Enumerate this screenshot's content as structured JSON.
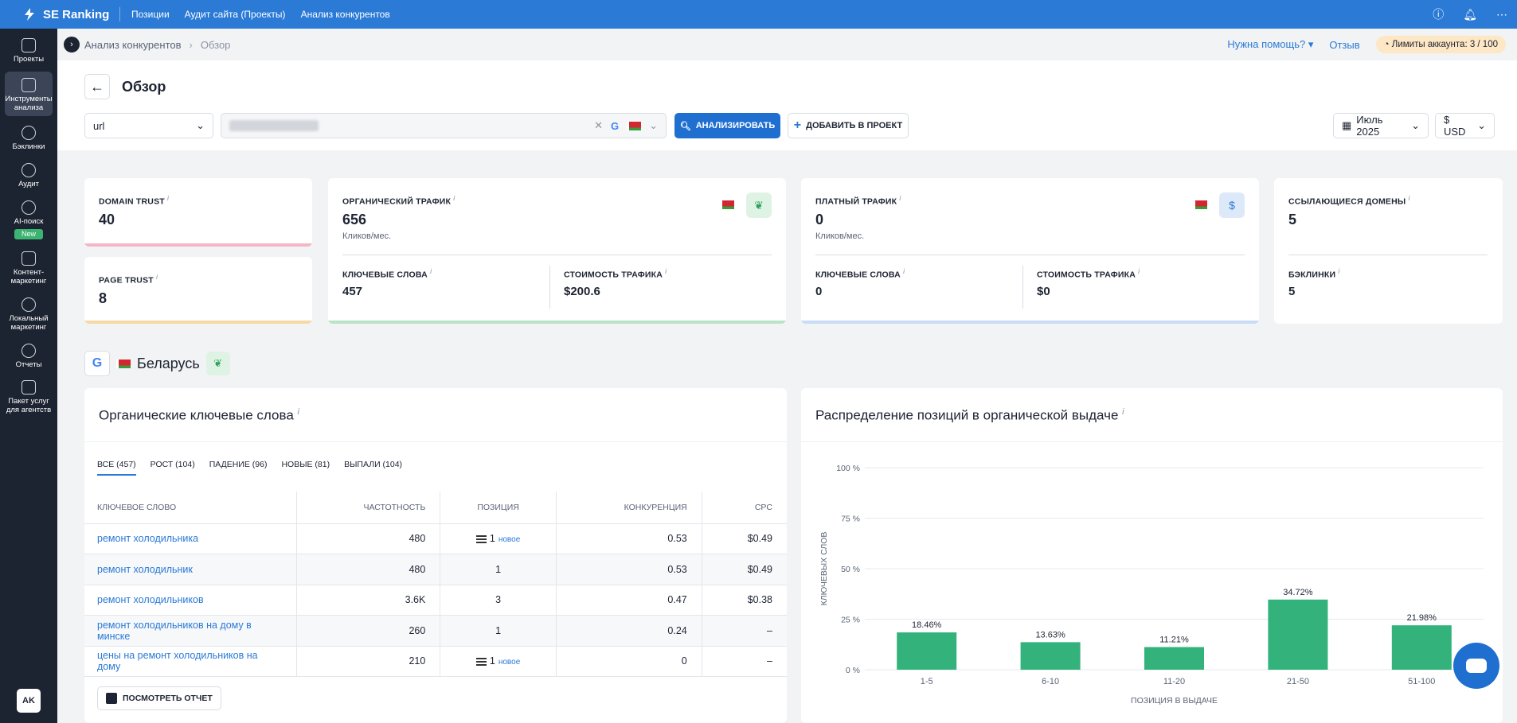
{
  "app": {
    "name": "SE Ranking"
  },
  "topnav": [
    "Позиции",
    "Аудит сайта (Проекты)",
    "Анализ конкурентов"
  ],
  "sidebar": [
    {
      "label": "Проекты"
    },
    {
      "label": "Инструменты анализа"
    },
    {
      "label": "Бэклинки"
    },
    {
      "label": "Аудит"
    },
    {
      "label": "AI-поиск",
      "badge": "New"
    },
    {
      "label": "Контент-маркетинг"
    },
    {
      "label": "Локальный маркетинг"
    },
    {
      "label": "Отчеты"
    },
    {
      "label": "Пакет услуг для агентств"
    }
  ],
  "user": {
    "initials": "AK"
  },
  "breadcrumb": {
    "parent": "Анализ конкурентов",
    "current": "Обзор"
  },
  "header_right": {
    "help": "Нужна помощь?",
    "review": "Отзыв",
    "limits": "Лимиты аккаунта: 3 / 100"
  },
  "page": {
    "title": "Обзор"
  },
  "toolbar": {
    "mode": "url",
    "analyze": "АНАЛИЗИРОВАТЬ",
    "add_project": "ДОБАВИТЬ В ПРОЕКТ",
    "date": "Июль 2025",
    "currency": "$ USD"
  },
  "cards": {
    "domain_trust": {
      "label": "DOMAIN TRUST",
      "value": "40"
    },
    "page_trust": {
      "label": "PAGE TRUST",
      "value": "8"
    },
    "organic": {
      "label": "ОРГАНИЧЕСКИЙ ТРАФИК",
      "value": "656",
      "sub": "Кликов/мес.",
      "kw_label": "КЛЮЧЕВЫЕ СЛОВА",
      "kw_value": "457",
      "cost_label": "СТОИМОСТЬ ТРАФИКА",
      "cost_value": "$200.6"
    },
    "paid": {
      "label": "ПЛАТНЫЙ ТРАФИК",
      "value": "0",
      "sub": "Кликов/мес.",
      "kw_label": "КЛЮЧЕВЫЕ СЛОВА",
      "kw_value": "0",
      "cost_label": "СТОИМОСТЬ ТРАФИКА",
      "cost_value": "$0",
      "icon": "$"
    },
    "ref": {
      "label": "ССЫЛАЮЩИЕСЯ ДОМЕНЫ",
      "value": "5",
      "bl_label": "БЭКЛИНКИ",
      "bl_value": "5"
    }
  },
  "region": {
    "name": "Беларусь"
  },
  "keywords_panel": {
    "title": "Органические ключевые слова",
    "tabs": [
      "ВСЕ (457)",
      "РОСТ (104)",
      "ПАДЕНИЕ (96)",
      "НОВЫЕ (81)",
      "ВЫПАЛИ (104)"
    ],
    "columns": [
      "КЛЮЧЕВОЕ СЛОВО",
      "ЧАСТОТНОСТЬ",
      "ПОЗИЦИЯ",
      "КОНКУРЕНЦИЯ",
      "CPC"
    ],
    "rows": [
      {
        "kw": "ремонт холодильника",
        "freq": "480",
        "pos": "1",
        "tag": "новое",
        "comp": "0.53",
        "cpc": "$0.49"
      },
      {
        "kw": "ремонт холодильник",
        "freq": "480",
        "pos": "1",
        "tag": "",
        "comp": "0.53",
        "cpc": "$0.49"
      },
      {
        "kw": "ремонт холодильников",
        "freq": "3.6K",
        "pos": "3",
        "tag": "",
        "comp": "0.47",
        "cpc": "$0.38"
      },
      {
        "kw": "ремонт холодильников на дому в минске",
        "freq": "260",
        "pos": "1",
        "tag": "",
        "comp": "0.24",
        "cpc": "–"
      },
      {
        "kw": "цены на ремонт холодильников на дому",
        "freq": "210",
        "pos": "1",
        "tag": "новое",
        "comp": "0",
        "cpc": "–"
      }
    ],
    "report_button": "ПОСМОТРЕТЬ ОТЧЕТ"
  },
  "distribution_panel": {
    "title": "Распределение позиций в органической выдаче"
  },
  "chart_data": {
    "type": "bar",
    "categories": [
      "1-5",
      "6-10",
      "11-20",
      "21-50",
      "51-100"
    ],
    "values": [
      18.46,
      13.63,
      11.21,
      34.72,
      21.98
    ],
    "data_labels": [
      "18.46%",
      "13.63%",
      "11.21%",
      "34.72%",
      "21.98%"
    ],
    "ylim": [
      0,
      100
    ],
    "yticks": [
      "0 %",
      "25 %",
      "50 %",
      "75 %",
      "100 %"
    ],
    "xlabel": "ПОЗИЦИЯ В ВЫДАЧЕ",
    "ylabel": "КЛЮЧЕВЫХ СЛОВ",
    "color": "#34b27b",
    "grid": true
  },
  "colors": {
    "brand": "#2a7ad6",
    "sidebar": "#1d2431",
    "accent_green": "#34b27b"
  }
}
